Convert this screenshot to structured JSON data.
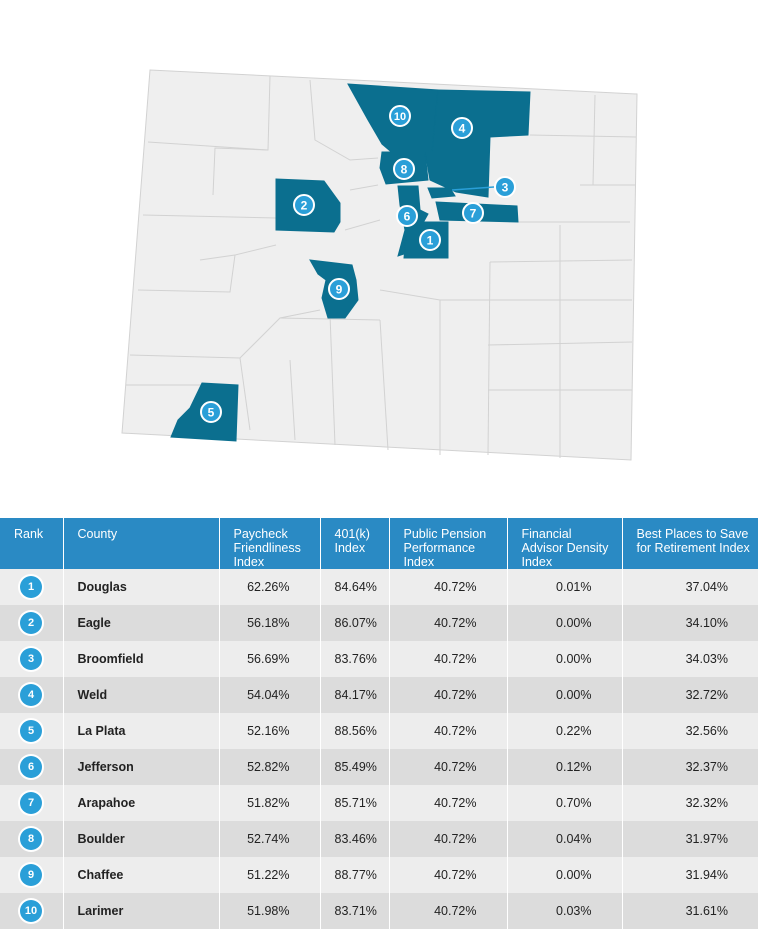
{
  "map": {
    "highlight_color": "#0b6f8f",
    "base_color": "#efefef",
    "badge_color": "#2a9fd8",
    "markers": [
      "1",
      "2",
      "3",
      "4",
      "5",
      "6",
      "7",
      "8",
      "9",
      "10"
    ]
  },
  "table": {
    "header_color": "#2a8ac4",
    "headers": [
      "Rank",
      "County",
      "Paycheck Friendliness Index",
      "401(k) Index",
      "Public Pension Performance Index",
      "Financial Advisor Density Index",
      "Best Places to Save for Retirement Index"
    ],
    "rows": [
      {
        "rank": "1",
        "county": "Douglas",
        "paycheck": "62.26%",
        "k401": "84.64%",
        "pension": "40.72%",
        "advisor": "0.01%",
        "best": "37.04%"
      },
      {
        "rank": "2",
        "county": "Eagle",
        "paycheck": "56.18%",
        "k401": "86.07%",
        "pension": "40.72%",
        "advisor": "0.00%",
        "best": "34.10%"
      },
      {
        "rank": "3",
        "county": "Broomfield",
        "paycheck": "56.69%",
        "k401": "83.76%",
        "pension": "40.72%",
        "advisor": "0.00%",
        "best": "34.03%"
      },
      {
        "rank": "4",
        "county": "Weld",
        "paycheck": "54.04%",
        "k401": "84.17%",
        "pension": "40.72%",
        "advisor": "0.00%",
        "best": "32.72%"
      },
      {
        "rank": "5",
        "county": "La Plata",
        "paycheck": "52.16%",
        "k401": "88.56%",
        "pension": "40.72%",
        "advisor": "0.22%",
        "best": "32.56%"
      },
      {
        "rank": "6",
        "county": "Jefferson",
        "paycheck": "52.82%",
        "k401": "85.49%",
        "pension": "40.72%",
        "advisor": "0.12%",
        "best": "32.37%"
      },
      {
        "rank": "7",
        "county": "Arapahoe",
        "paycheck": "51.82%",
        "k401": "85.71%",
        "pension": "40.72%",
        "advisor": "0.70%",
        "best": "32.32%"
      },
      {
        "rank": "8",
        "county": "Boulder",
        "paycheck": "52.74%",
        "k401": "83.46%",
        "pension": "40.72%",
        "advisor": "0.04%",
        "best": "31.97%"
      },
      {
        "rank": "9",
        "county": "Chaffee",
        "paycheck": "51.22%",
        "k401": "88.77%",
        "pension": "40.72%",
        "advisor": "0.00%",
        "best": "31.94%"
      },
      {
        "rank": "10",
        "county": "Larimer",
        "paycheck": "51.98%",
        "k401": "83.71%",
        "pension": "40.72%",
        "advisor": "0.03%",
        "best": "31.61%"
      }
    ]
  }
}
